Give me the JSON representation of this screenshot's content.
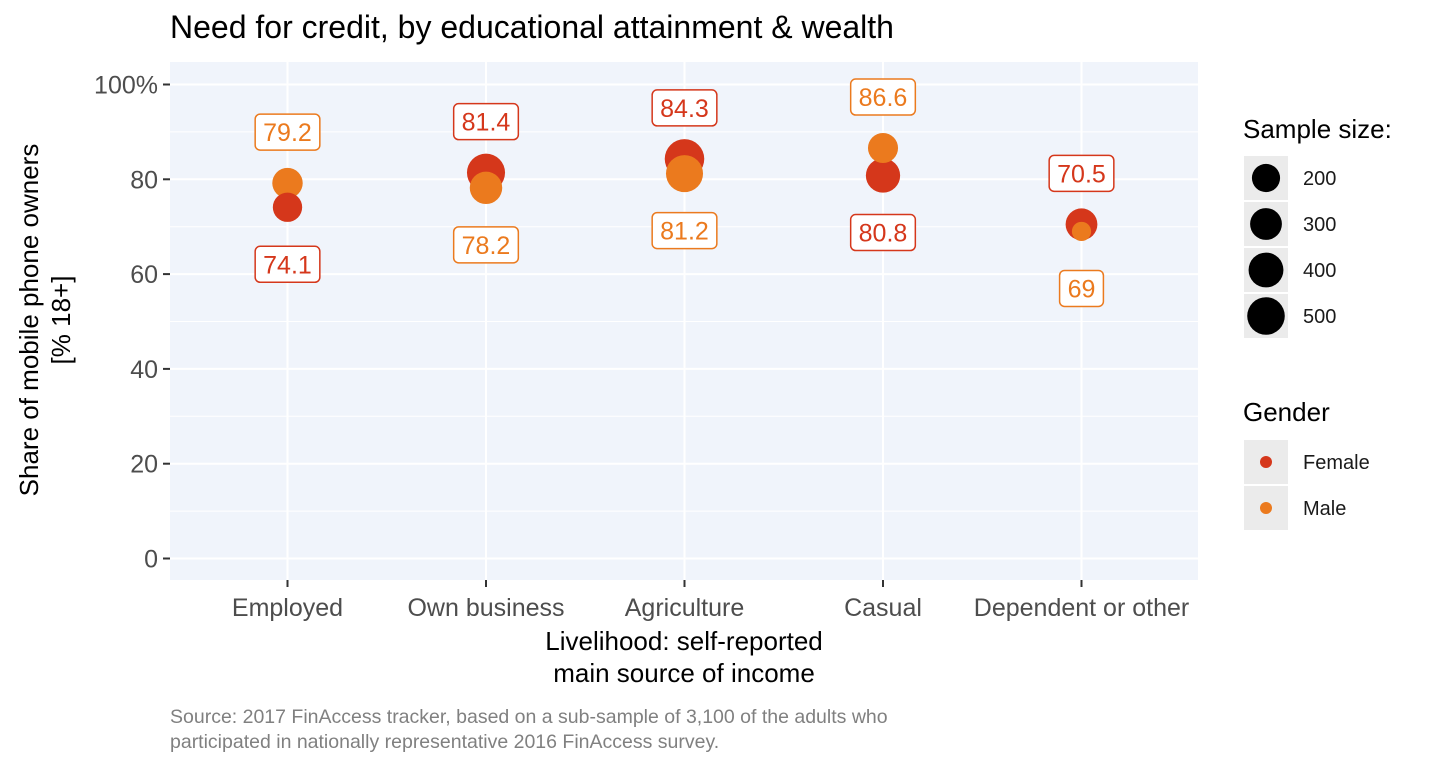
{
  "colors": {
    "female": "#D5371B",
    "male": "#EB7A1E",
    "panel_bg": "#F0F4FB",
    "grid": "#FFFFFF",
    "legend_key_bg": "#EBEBEB",
    "size_key": "#000000"
  },
  "chart_data": {
    "type": "scatter",
    "title": "Need for credit, by educational attainment & wealth",
    "xlabel": "Livelihood: self-reported\nmain source of income",
    "ylabel": "Share of mobile phone owners\n[% 18+]",
    "caption": "Source: 2017 FinAccess tracker, based on a sub-sample of 3,100 of the adults who\nparticipated in nationally representative 2016 FinAccess survey.",
    "categories": [
      "Employed",
      "Own business",
      "Agriculture",
      "Casual",
      "Dependent or other"
    ],
    "ylim": [
      0,
      100
    ],
    "yticks": [
      {
        "value": 0,
        "label": "0"
      },
      {
        "value": 20,
        "label": "20"
      },
      {
        "value": 40,
        "label": "40"
      },
      {
        "value": 60,
        "label": "60"
      },
      {
        "value": 80,
        "label": "80"
      },
      {
        "value": 100,
        "label": "100%"
      }
    ],
    "series": [
      {
        "name": "Female",
        "color_key": "female",
        "values": [
          74.1,
          81.4,
          84.3,
          80.8,
          70.5
        ],
        "labels": [
          "74.1",
          "81.4",
          "84.3",
          "80.8",
          "70.5"
        ],
        "label_position": [
          "below",
          "above",
          "above",
          "below",
          "above"
        ],
        "sample_size": [
          230,
          520,
          580,
          380,
          300
        ]
      },
      {
        "name": "Male",
        "color_key": "male",
        "values": [
          79.2,
          78.2,
          81.2,
          86.6,
          69
        ],
        "labels": [
          "79.2",
          "78.2",
          "81.2",
          "86.6",
          "69"
        ],
        "label_position": [
          "above",
          "below",
          "below",
          "above",
          "below"
        ],
        "sample_size": [
          260,
          320,
          480,
          250,
          40
        ]
      }
    ],
    "legend": {
      "placement": "right",
      "size_title": "Sample size:",
      "size_keys": [
        {
          "label": "200",
          "value": 200
        },
        {
          "label": "300",
          "value": 300
        },
        {
          "label": "400",
          "value": 400
        },
        {
          "label": "500",
          "value": 500
        }
      ],
      "color_title": "Gender",
      "color_keys": [
        {
          "label": "Female",
          "color_key": "female"
        },
        {
          "label": "Male",
          "color_key": "male"
        }
      ]
    },
    "grid": true
  }
}
